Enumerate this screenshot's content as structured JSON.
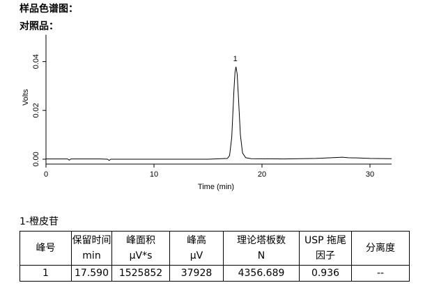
{
  "header": {
    "title": "样品色谱图：",
    "subtitle": "对照品："
  },
  "chart_data": {
    "type": "line",
    "xlabel": "Time (min)",
    "ylabel": "Volts",
    "x": [
      0,
      2,
      2.15,
      2.3,
      5,
      5.7,
      5.85,
      6,
      10,
      15,
      16.8,
      17.0,
      17.2,
      17.4,
      17.5,
      17.59,
      17.7,
      17.8,
      18.0,
      18.2,
      18.5,
      19,
      22,
      25,
      27,
      27.4,
      28,
      29,
      30,
      32
    ],
    "values": [
      0.0001,
      0.0001,
      -0.0004,
      0.0001,
      0.0001,
      0.0,
      -0.0005,
      0.0,
      0.0,
      0.0,
      0.0003,
      0.0015,
      0.009,
      0.028,
      0.0355,
      0.0379,
      0.035,
      0.027,
      0.01,
      0.0025,
      0.0006,
      0.0002,
      0.0001,
      0.0003,
      0.0007,
      0.0008,
      0.0006,
      0.0005,
      0.0003,
      0.0002
    ],
    "color": "#000000",
    "xlim": [
      0,
      32
    ],
    "ylim": [
      -0.002,
      0.051
    ],
    "xticks": [
      0,
      10,
      20,
      30
    ],
    "yticks": [
      {
        "value": 0,
        "label": "0.00"
      },
      {
        "value": 0.02,
        "label": "0.02"
      },
      {
        "value": 0.04,
        "label": "0.04"
      }
    ],
    "annotations": [
      {
        "text": "1"
      }
    ]
  },
  "table": {
    "caption": "1-橙皮苷",
    "headers": [
      [
        "峰号"
      ],
      [
        "保留时间",
        "min"
      ],
      [
        "峰面积",
        "μV*s"
      ],
      [
        "峰高",
        "μV"
      ],
      [
        "理论塔板数",
        "N"
      ],
      [
        "USP 拖尾",
        "因子"
      ],
      [
        "分离度"
      ]
    ],
    "rows": [
      [
        "1",
        "17.590",
        "1525852",
        "37928",
        "4356.689",
        "0.936",
        "--"
      ]
    ]
  }
}
